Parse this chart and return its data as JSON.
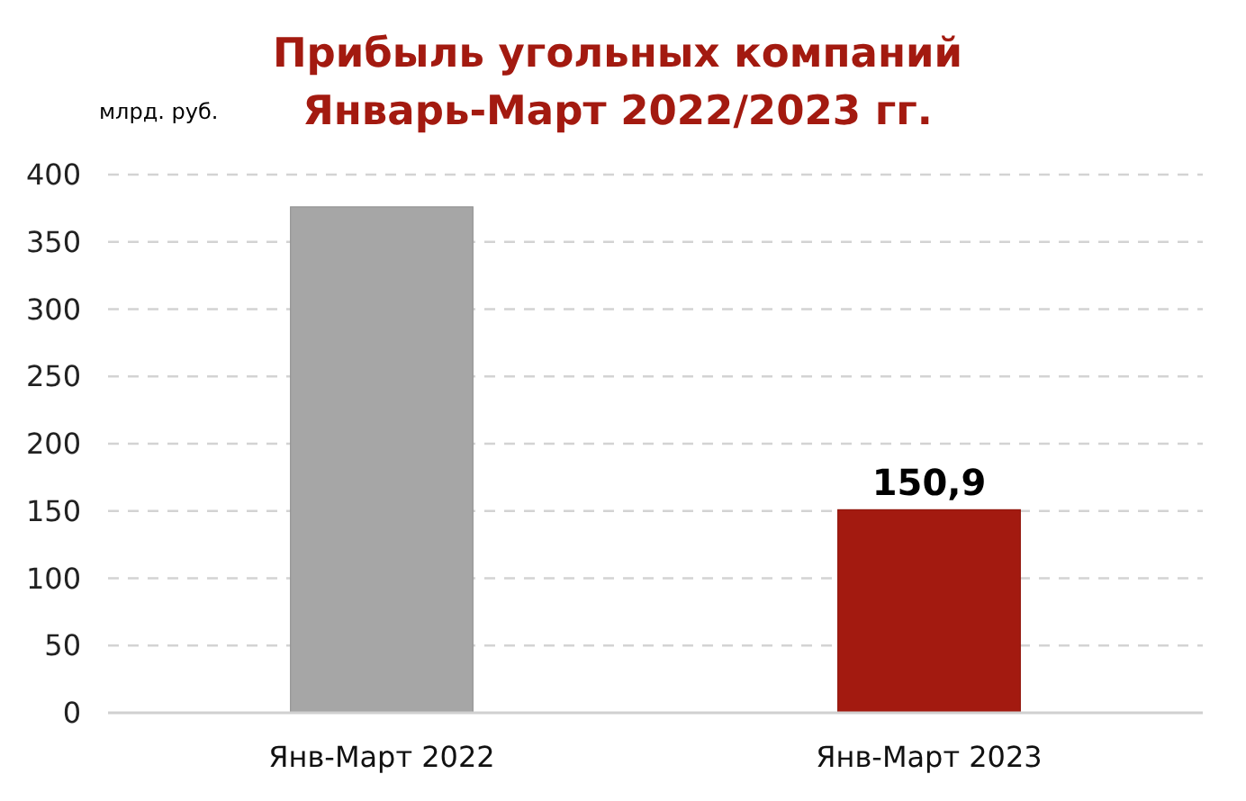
{
  "chart_data": {
    "type": "bar",
    "title": "Прибыль угольных компаний\nЯнварь-Март 2022/2023 гг.",
    "ylabel": "млрд. руб.",
    "categories": [
      "Янв-Март 2022",
      "Янв-Март 2023"
    ],
    "values": [
      376,
      150.9
    ],
    "colors": [
      "#a6a6a6",
      "#a31a10"
    ],
    "value_labels": [
      null,
      "150,9"
    ],
    "ylim": [
      0,
      400
    ],
    "yticks": [
      0,
      50,
      100,
      150,
      200,
      250,
      300,
      350,
      400
    ],
    "grid": "y"
  }
}
